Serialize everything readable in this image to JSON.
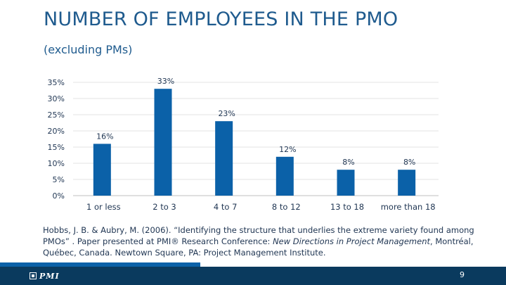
{
  "slide": {
    "title": "NUMBER OF EMPLOYEES IN THE PMO",
    "subtitle": "(excluding PMs)",
    "citation_pre": "Hobbs, J. B. & Aubry, M. (2006).   “Identifying the structure that underlies the extreme variety found among PMOs” . Paper presented at PMI® Research Conference: ",
    "citation_em": "New Directions in Project Management",
    "citation_post": ", Montréal, Québec, Canada. Newtown Square, PA: Project Management Institute.",
    "logo_text": "PMI",
    "page_number": "9"
  },
  "colors": {
    "bar": "#0b61a8",
    "footer": "#0a3a5e",
    "accent": "#0b61a8"
  },
  "chart_data": {
    "type": "bar",
    "categories": [
      "1 or less",
      "2 to 3",
      "4 to 7",
      "8 to 12",
      "13 to 18",
      "more than 18"
    ],
    "values": [
      16,
      33,
      23,
      12,
      8,
      8
    ],
    "value_labels": [
      "16%",
      "33%",
      "23%",
      "12%",
      "8%",
      "8%"
    ],
    "y_ticks": [
      "0%",
      "5%",
      "10%",
      "15%",
      "20%",
      "25%",
      "30%",
      "35%"
    ],
    "y_tick_values": [
      0,
      5,
      10,
      15,
      20,
      25,
      30,
      35
    ],
    "ylim": [
      0,
      35
    ],
    "grid": true
  }
}
